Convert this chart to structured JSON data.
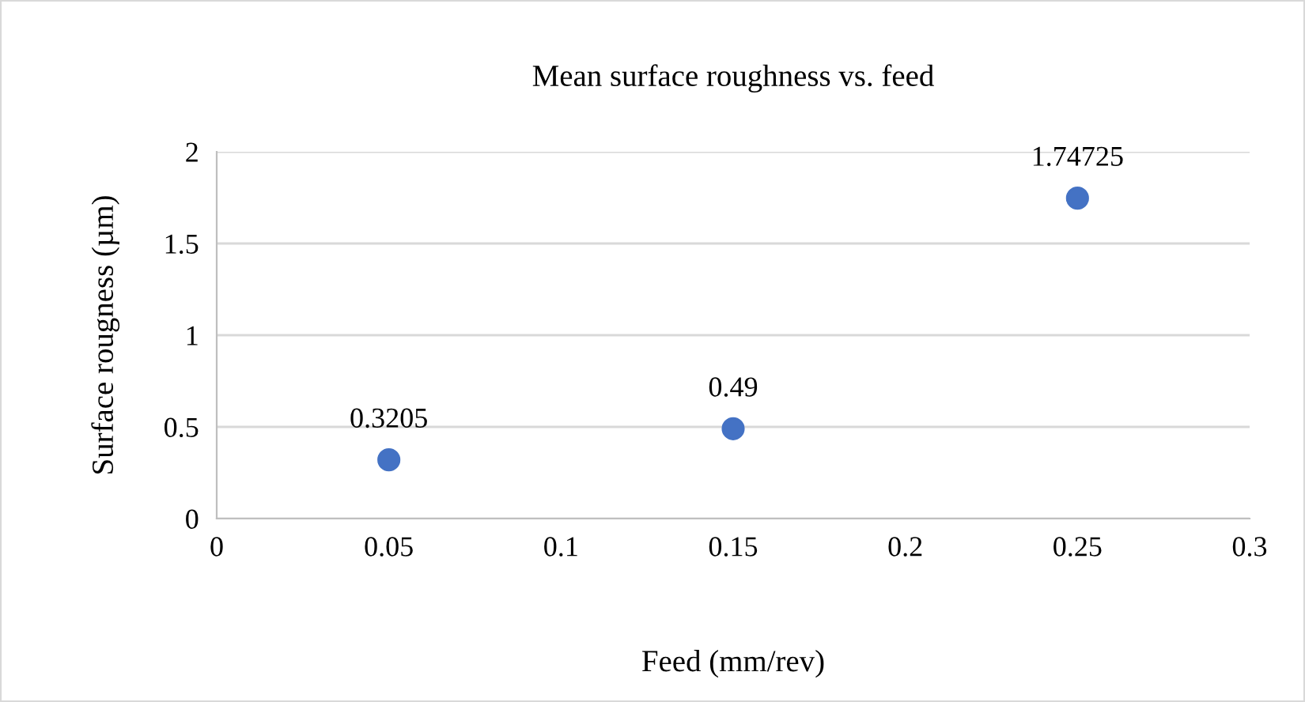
{
  "chart_data": {
    "type": "scatter",
    "title": "Mean surface roughness vs. feed",
    "xlabel": "Feed (mm/rev)",
    "ylabel": "Surface rougness (µm)",
    "x": [
      0.05,
      0.15,
      0.25
    ],
    "values": [
      0.3205,
      0.49,
      1.74725
    ],
    "color": "#4472c4",
    "marker": "circle",
    "xlim": [
      0,
      0.3
    ],
    "xticks": [
      0,
      0.05,
      0.1,
      0.15,
      0.2,
      0.25,
      0.3
    ],
    "ylim": [
      0,
      2
    ],
    "yticks": [
      0,
      0.5,
      1,
      1.5,
      2
    ],
    "grid": "y",
    "data_labels": true
  }
}
